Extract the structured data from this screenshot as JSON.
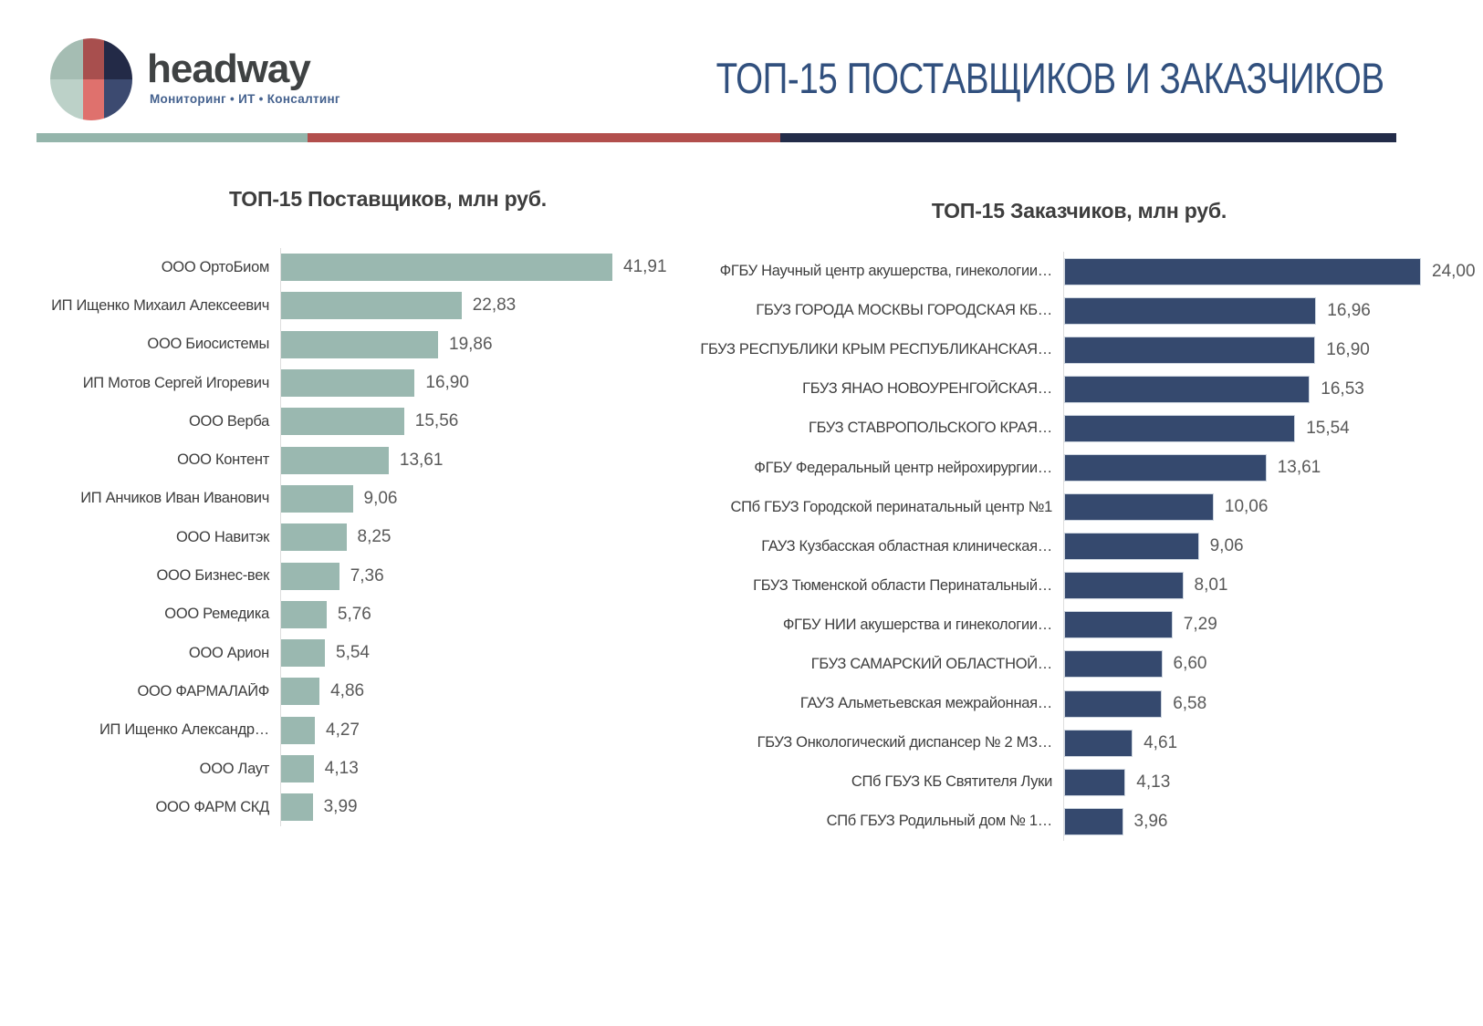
{
  "header": {
    "logo_text": "headway",
    "logo_tagline": "Мониторинг • ИТ • Консалтинг",
    "title": "ТОП-15 ПОСТАВЩИКОВ И ЗАКАЗЧИКОВ"
  },
  "colors": {
    "title_blue": "#31507e",
    "teal_accent": "#94b5ab",
    "red_accent": "#b24f4d",
    "navy_accent": "#232c49",
    "supplier_bar": "#9ab8b0",
    "customer_bar": "#35496e",
    "axis_gray": "#dddddd",
    "logo_sage_dark": "#a5bdb3",
    "logo_sage_light": "#bcd1c8",
    "logo_red_dark": "#a84f4e",
    "logo_red_light": "#df716d",
    "logo_navy_dark": "#232a47",
    "logo_navy_light": "#3c4a70"
  },
  "chart_data": [
    {
      "id": "suppliers",
      "type": "bar",
      "orientation": "horizontal",
      "title": "ТОП-15 Поставщиков, млн руб.",
      "unit": "млн руб.",
      "legend": "none",
      "grid": "off",
      "xlim": [
        0,
        45
      ],
      "categories": [
        "ООО ОртоБиом",
        "ИП Ищенко Михаил Алексеевич",
        "ООО Биосистемы",
        "ИП Мотов Сергей Игоревич",
        "ООО Верба",
        "ООО Контент",
        "ИП Анчиков Иван Иванович",
        "ООО Навитэк",
        "ООО Бизнес-век",
        "ООО Ремедика",
        "ООО Арион",
        "ООО ФАРМАЛАЙФ",
        "ИП Ищенко Александр…",
        "ООО Лаут",
        "ООО ФАРМ СКД"
      ],
      "values": [
        41.91,
        22.83,
        19.86,
        16.9,
        15.56,
        13.61,
        9.06,
        8.25,
        7.36,
        5.76,
        5.54,
        4.86,
        4.27,
        4.13,
        3.99
      ],
      "value_labels": [
        "41,91",
        "22,83",
        "19,86",
        "16,90",
        "15,56",
        "13,61",
        "9,06",
        "8,25",
        "7,36",
        "5,76",
        "5,54",
        "4,86",
        "4,27",
        "4,13",
        "3,99"
      ]
    },
    {
      "id": "customers",
      "type": "bar",
      "orientation": "horizontal",
      "title": "ТОП-15 Заказчиков, млн руб.",
      "unit": "млн руб.",
      "legend": "none",
      "grid": "off",
      "xlim": [
        0,
        25
      ],
      "categories": [
        "ФГБУ Научный центр акушерства, гинекологии…",
        "ГБУЗ ГОРОДА МОСКВЫ ГОРОДСКАЯ КБ…",
        "ГБУЗ РЕСПУБЛИКИ КРЫМ РЕСПУБЛИКАНСКАЯ…",
        "ГБУЗ ЯНАО НОВОУРЕНГОЙСКАЯ…",
        "ГБУЗ СТАВРОПОЛЬСКОГО КРАЯ…",
        "ФГБУ Федеральный центр нейрохирургии…",
        "СПб ГБУЗ Городской перинатальный центр №1",
        "ГАУЗ Кузбасская областная клиническая…",
        "ГБУЗ Тюменской области Перинатальный…",
        "ФГБУ НИИ акушерства и гинекологии…",
        "ГБУЗ САМАРСКИЙ ОБЛАСТНОЙ…",
        "ГАУЗ Альметьевская межрайонная…",
        "ГБУЗ Онкологический диспансер № 2 МЗ…",
        "СПб ГБУЗ КБ Святителя Луки",
        "СПб ГБУЗ Родильный дом № 1…"
      ],
      "values": [
        24.0,
        16.96,
        16.9,
        16.53,
        15.54,
        13.61,
        10.06,
        9.06,
        8.01,
        7.29,
        6.6,
        6.58,
        4.61,
        4.13,
        3.96
      ],
      "value_labels": [
        "24,00",
        "16,96",
        "16,90",
        "16,53",
        "15,54",
        "13,61",
        "10,06",
        "9,06",
        "8,01",
        "7,29",
        "6,60",
        "6,58",
        "4,61",
        "4,13",
        "3,96"
      ]
    }
  ]
}
